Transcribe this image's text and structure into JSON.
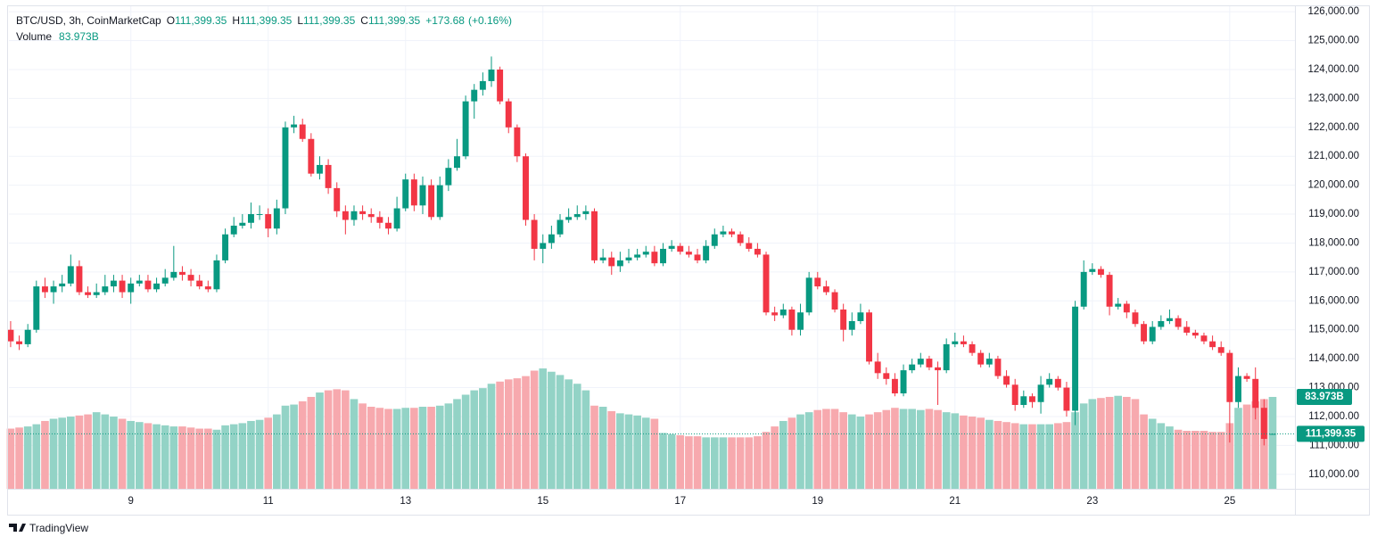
{
  "chart_data": {
    "type": "candlestick",
    "title": "BTC/USD, 3h, CoinMarketCap",
    "legend_fields": [
      {
        "key": "O",
        "label": "111,399.35"
      },
      {
        "key": "H",
        "label": "111,399.35"
      },
      {
        "key": "L",
        "label": "111,399.35"
      },
      {
        "key": "C",
        "label": "111,399.35"
      }
    ],
    "change_label": "+173.68",
    "change_pct_label": "(+0.16%)",
    "volume_name": "Volume",
    "volume_label": "83.973B",
    "price_label": "111,399.35",
    "watermark": "TradingView",
    "up_color": "#089981",
    "down_color": "#f23645",
    "volume_up_color": "#93d3c6",
    "volume_down_color": "#f7a9ae",
    "grid": true,
    "categories": [
      null,
      null,
      null,
      null,
      null,
      null,
      null,
      null,
      null,
      null,
      null,
      null,
      null,
      null,
      null,
      null,
      null,
      null,
      null,
      null,
      null,
      null,
      null,
      null,
      null,
      null,
      null,
      null,
      null,
      null,
      null,
      null,
      null,
      null,
      null,
      null,
      null,
      null,
      null,
      null,
      null,
      null,
      null,
      null,
      null,
      null,
      null,
      null,
      null,
      null,
      null,
      null,
      null,
      null,
      null,
      null,
      null,
      null,
      null,
      null,
      null,
      null,
      null,
      null,
      null,
      null,
      null,
      null,
      null,
      null,
      null,
      null,
      null,
      null,
      null,
      null,
      null,
      null,
      null,
      null,
      null,
      null,
      null,
      null,
      null,
      null,
      null,
      null,
      null,
      null,
      null,
      null,
      null,
      null,
      null,
      null,
      null,
      null,
      null,
      null,
      null,
      null,
      null,
      null,
      null,
      null,
      null,
      null,
      null,
      null,
      null,
      null,
      null,
      null,
      null,
      null,
      null,
      null,
      null,
      null,
      null,
      null,
      null,
      null,
      null,
      null,
      null,
      null,
      null,
      null,
      null,
      null,
      null,
      null,
      null,
      null,
      null,
      null,
      null,
      null,
      null,
      null,
      null,
      null,
      null,
      null,
      null,
      null
    ],
    "open": [
      115000,
      114600,
      114500,
      115000,
      116500,
      116300,
      116500,
      116600,
      117200,
      116300,
      116200,
      116300,
      116500,
      116700,
      116300,
      116600,
      116700,
      116400,
      116600,
      116800,
      117000,
      116900,
      116700,
      116500,
      116400,
      117400,
      118300,
      118600,
      118700,
      119000,
      119000,
      118500,
      119200,
      122000,
      122100,
      121600,
      120400,
      120700,
      119900,
      119100,
      118800,
      119100,
      119000,
      118900,
      118700,
      118500,
      119200,
      120200,
      119300,
      120000,
      118900,
      120000,
      120600,
      121000,
      122900,
      123300,
      123600,
      124000,
      122900,
      122000,
      121000,
      118800,
      117800,
      118000,
      118300,
      118800,
      118900,
      119000,
      119100,
      117400,
      117500,
      117200,
      117400,
      117500,
      117600,
      117700,
      117300,
      117800,
      117900,
      117700,
      117600,
      117400,
      117900,
      118300,
      118400,
      118300,
      118000,
      117800,
      117600,
      115600,
      115500,
      115700,
      115000,
      115600,
      116800,
      116500,
      116300,
      115700,
      115000,
      115300,
      115600,
      113900,
      113500,
      113300,
      112800,
      113600,
      113800,
      114000,
      113700,
      113600,
      114500,
      114600,
      114500,
      114200,
      113800,
      114000,
      113400,
      113100,
      112400,
      112700,
      112500,
      113100,
      113300,
      113000,
      112200,
      115800,
      117000,
      117100,
      116900,
      115800,
      115900,
      115600,
      115200,
      114600,
      115100,
      115300,
      115400,
      115100,
      114900,
      114800,
      114600,
      114400,
      114200,
      112500,
      113400,
      113300,
      112300,
      111399.35
    ],
    "high": [
      115300,
      114800,
      115200,
      116700,
      116800,
      116700,
      116900,
      117600,
      117400,
      116500,
      116600,
      116900,
      116900,
      116900,
      116800,
      116900,
      116900,
      116800,
      117100,
      117900,
      117200,
      117100,
      116900,
      116700,
      117600,
      118500,
      118900,
      119000,
      119400,
      119300,
      119200,
      119500,
      122200,
      122400,
      122300,
      121800,
      121000,
      120900,
      120100,
      119300,
      119300,
      119300,
      119200,
      119100,
      118900,
      119600,
      120400,
      120400,
      120300,
      120200,
      120300,
      120900,
      121600,
      123100,
      123500,
      123900,
      124450,
      124100,
      123000,
      122100,
      121100,
      119000,
      118300,
      118600,
      119000,
      119200,
      119300,
      119300,
      119200,
      117800,
      117700,
      117700,
      117800,
      117800,
      117900,
      117900,
      118000,
      118100,
      118000,
      117900,
      117800,
      118100,
      118500,
      118600,
      118500,
      118400,
      118200,
      118000,
      117700,
      115800,
      115900,
      115800,
      115900,
      117000,
      117000,
      116700,
      116400,
      115900,
      115600,
      115900,
      115700,
      114200,
      113700,
      113500,
      113800,
      114000,
      114200,
      114100,
      113900,
      114700,
      114900,
      114800,
      114600,
      114300,
      114200,
      114100,
      113600,
      113300,
      112900,
      112800,
      113400,
      113500,
      113400,
      113200,
      116000,
      117400,
      117300,
      117200,
      117000,
      116100,
      116000,
      115700,
      115300,
      115300,
      115500,
      115700,
      115500,
      115300,
      115000,
      114900,
      114800,
      114600,
      114300,
      113700,
      113500,
      113700,
      112600,
      111399.35
    ],
    "low": [
      114400,
      114300,
      114400,
      114900,
      116100,
      115900,
      116300,
      116500,
      116200,
      116100,
      116100,
      116200,
      116300,
      116100,
      115900,
      116500,
      116300,
      116300,
      116500,
      116700,
      116700,
      116500,
      116400,
      116300,
      116300,
      117300,
      118200,
      118500,
      118500,
      118800,
      118200,
      118300,
      119000,
      121800,
      121500,
      120300,
      120200,
      119700,
      118900,
      118300,
      118600,
      118800,
      118700,
      118500,
      118300,
      118400,
      119100,
      119100,
      119000,
      118800,
      118800,
      119800,
      120500,
      120900,
      122300,
      123100,
      123400,
      122800,
      121800,
      120800,
      118600,
      117400,
      117300,
      117800,
      118200,
      118700,
      118800,
      118800,
      117300,
      117300,
      116900,
      117000,
      117300,
      117400,
      117500,
      117200,
      117200,
      117700,
      117600,
      117500,
      117300,
      117300,
      117800,
      118200,
      118200,
      117900,
      117700,
      117500,
      115500,
      115300,
      115400,
      114800,
      114800,
      115500,
      116400,
      116200,
      115600,
      114600,
      114800,
      115200,
      113800,
      113300,
      113100,
      112700,
      112700,
      113500,
      113700,
      113600,
      112400,
      113500,
      114400,
      114400,
      114100,
      113700,
      113700,
      113300,
      113000,
      112200,
      112300,
      112300,
      112100,
      113000,
      112900,
      112000,
      111700,
      115700,
      116900,
      116800,
      115500,
      115700,
      115400,
      115100,
      114500,
      114500,
      115000,
      115200,
      115000,
      114800,
      114700,
      114500,
      114300,
      114100,
      111100,
      112300,
      113200,
      111900,
      111000,
      111399.35
    ],
    "close": [
      114600,
      114500,
      115000,
      116500,
      116300,
      116500,
      116600,
      117200,
      116300,
      116200,
      116300,
      116500,
      116700,
      116300,
      116600,
      116700,
      116400,
      116600,
      116800,
      117000,
      116900,
      116700,
      116500,
      116400,
      117400,
      118300,
      118600,
      118700,
      119000,
      119000,
      118500,
      119200,
      122000,
      122100,
      121600,
      120400,
      120700,
      119900,
      119100,
      118800,
      119100,
      119000,
      118900,
      118700,
      118500,
      119200,
      120200,
      119300,
      120000,
      118900,
      120000,
      120600,
      121000,
      122900,
      123300,
      123600,
      124000,
      122900,
      122000,
      121000,
      118800,
      117800,
      118000,
      118300,
      118800,
      118900,
      119000,
      119100,
      117400,
      117500,
      117200,
      117400,
      117500,
      117600,
      117700,
      117300,
      117800,
      117900,
      117700,
      117600,
      117400,
      117900,
      118300,
      118400,
      118300,
      118000,
      117800,
      117600,
      115600,
      115500,
      115700,
      115000,
      115600,
      116800,
      116500,
      116300,
      115700,
      115000,
      115300,
      115600,
      113900,
      113500,
      113300,
      112800,
      113600,
      113800,
      114000,
      113700,
      113600,
      114500,
      114600,
      114500,
      114200,
      113800,
      114000,
      113400,
      113100,
      112400,
      112700,
      112500,
      113100,
      113300,
      113000,
      112200,
      115800,
      117000,
      117100,
      116900,
      115800,
      115900,
      115600,
      115200,
      114600,
      115100,
      115300,
      115400,
      115100,
      114900,
      114800,
      114600,
      114400,
      114200,
      112500,
      113400,
      113300,
      112300,
      111225.67,
      111399.35
    ],
    "volume": [
      55,
      56,
      57,
      59,
      62,
      64,
      65,
      66,
      67,
      68,
      70,
      68,
      66,
      64,
      62,
      61,
      60,
      59,
      58,
      57,
      57,
      56,
      55,
      55,
      54,
      58,
      59,
      60,
      62,
      63,
      65,
      68,
      76,
      77,
      80,
      84,
      88,
      90,
      91,
      90,
      82,
      78,
      75,
      74,
      73,
      73,
      74,
      74,
      75,
      75,
      76,
      78,
      82,
      86,
      90,
      92,
      96,
      98,
      100,
      101,
      103,
      108,
      110,
      107,
      104,
      100,
      96,
      90,
      76,
      75,
      71,
      69,
      68,
      67,
      65,
      64,
      51,
      50,
      49,
      48,
      48,
      47,
      47,
      47,
      47,
      47,
      47,
      48,
      52,
      57,
      62,
      65,
      68,
      70,
      72,
      73,
      73,
      70,
      68,
      66,
      68,
      70,
      72,
      74,
      73,
      73,
      72,
      73,
      72,
      70,
      69,
      67,
      66,
      65,
      63,
      62,
      61,
      60,
      59,
      59,
      59,
      59,
      60,
      61,
      70,
      78,
      82,
      83,
      84,
      85,
      84,
      82,
      68,
      64,
      60,
      57,
      54,
      53,
      53,
      53,
      52,
      52,
      60,
      74,
      77,
      80,
      82,
      83.973
    ],
    "volume_ylim": [
      0,
      300
    ],
    "xlim": [
      -0.2,
      149.6
    ],
    "xticks": [
      {
        "value": 14,
        "label": "9"
      },
      {
        "value": 30,
        "label": "11"
      },
      {
        "value": 46,
        "label": "13"
      },
      {
        "value": 62,
        "label": "15"
      },
      {
        "value": 78,
        "label": "17"
      },
      {
        "value": 94,
        "label": "19"
      },
      {
        "value": 110,
        "label": "21"
      },
      {
        "value": 126,
        "label": "23"
      },
      {
        "value": 142,
        "label": "25"
      }
    ],
    "ylim": [
      109500,
      126220
    ],
    "yticks": [
      {
        "value": 110000,
        "label": "110,000.00"
      },
      {
        "value": 111000,
        "label": "111,000.00"
      },
      {
        "value": 112000,
        "label": "112,000.00"
      },
      {
        "value": 113000,
        "label": "113,000.00"
      },
      {
        "value": 114000,
        "label": "114,000.00"
      },
      {
        "value": 115000,
        "label": "115,000.00"
      },
      {
        "value": 116000,
        "label": "116,000.00"
      },
      {
        "value": 117000,
        "label": "117,000.00"
      },
      {
        "value": 118000,
        "label": "118,000.00"
      },
      {
        "value": 119000,
        "label": "119,000.00"
      },
      {
        "value": 120000,
        "label": "120,000.00"
      },
      {
        "value": 121000,
        "label": "121,000.00"
      },
      {
        "value": 122000,
        "label": "122,000.00"
      },
      {
        "value": 123000,
        "label": "123,000.00"
      },
      {
        "value": 124000,
        "label": "124,000.00"
      },
      {
        "value": 125000,
        "label": "125,000.00"
      },
      {
        "value": 126000,
        "label": "126,000.00"
      }
    ]
  }
}
